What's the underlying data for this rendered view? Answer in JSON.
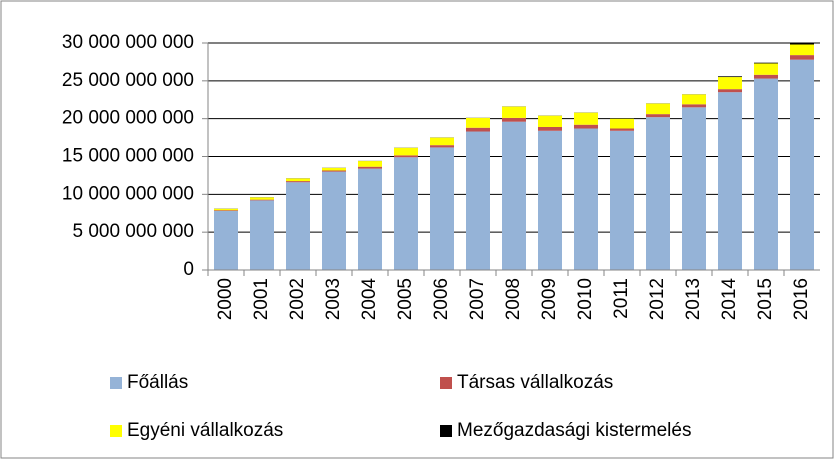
{
  "chart_data": {
    "type": "stacked_bar",
    "categories": [
      "2000",
      "2001",
      "2002",
      "2003",
      "2004",
      "2005",
      "2006",
      "2007",
      "2008",
      "2009",
      "2010",
      "2011",
      "2012",
      "2013",
      "2014",
      "2015",
      "2016"
    ],
    "series": [
      {
        "name": "Főállás",
        "color": "#95b3d7",
        "values": [
          7800000000,
          9200000000,
          11600000000,
          13000000000,
          13400000000,
          14900000000,
          16200000000,
          18300000000,
          19600000000,
          18400000000,
          18700000000,
          18400000000,
          20200000000,
          21500000000,
          23500000000,
          25300000000,
          27800000000
        ]
      },
      {
        "name": "Társas vállalkozás",
        "color": "#c0504d",
        "values": [
          100000000,
          100000000,
          150000000,
          150000000,
          250000000,
          250000000,
          300000000,
          500000000,
          500000000,
          500000000,
          500000000,
          300000000,
          400000000,
          400000000,
          400000000,
          500000000,
          600000000
        ]
      },
      {
        "name": "Egyéni vállalkozás",
        "color": "#ffff00",
        "values": [
          200000000,
          300000000,
          350000000,
          350000000,
          750000000,
          1000000000,
          1000000000,
          1300000000,
          1500000000,
          1500000000,
          1600000000,
          1300000000,
          1400000000,
          1300000000,
          1600000000,
          1500000000,
          1400000000
        ]
      },
      {
        "name": "Mezőgazdasági kistermelés",
        "color": "#000000",
        "values": [
          20000000,
          20000000,
          20000000,
          20000000,
          20000000,
          20000000,
          20000000,
          20000000,
          20000000,
          20000000,
          20000000,
          20000000,
          20000000,
          20000000,
          100000000,
          100000000,
          200000000
        ]
      }
    ],
    "ylim": [
      0,
      30000000000
    ],
    "yticks": [
      0,
      {
        "value": 5000000000,
        "label": "5 000 000 000"
      },
      {
        "value": 10000000000,
        "label": "10 000 000 000"
      },
      {
        "value": 15000000000,
        "label": "15 000 000 000"
      },
      {
        "value": 20000000000,
        "label": "20 000 000 000"
      },
      {
        "value": 25000000000,
        "label": "25 000 000 000"
      },
      {
        "value": 30000000000,
        "label": "30 000 000 000"
      }
    ],
    "grid": true,
    "legend": "bottom"
  }
}
